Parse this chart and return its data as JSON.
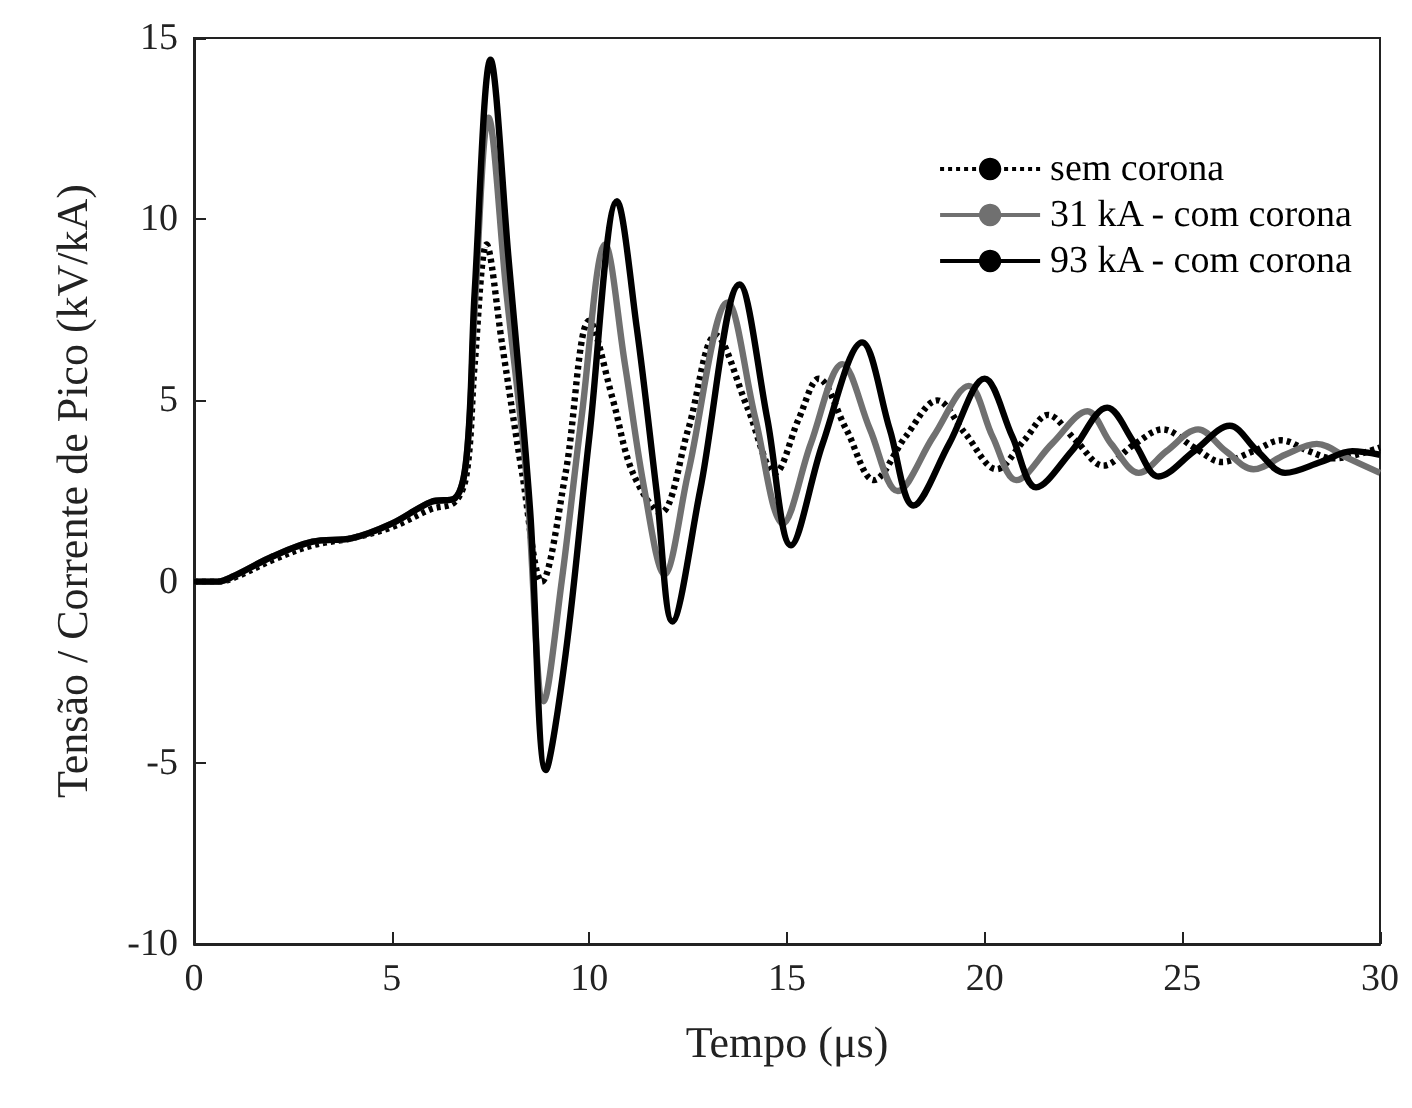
{
  "chart_data": {
    "type": "line",
    "xlabel": "Tempo (μs)",
    "ylabel": "Tensão / Corrente de Pico (kV/kA)",
    "xlim": [
      0,
      30
    ],
    "xticks": [
      0,
      5,
      10,
      15,
      20,
      25,
      30
    ],
    "ylim": [
      -10,
      15
    ],
    "yticks": [
      -10,
      -5,
      0,
      5,
      10,
      15
    ],
    "grid": false,
    "legend": "top right",
    "marker": "none",
    "series": [
      {
        "name": "sem corona",
        "color": "#000000",
        "line_style": "dotted",
        "x": [
          0,
          0.6,
          1,
          2,
          3,
          4,
          5,
          6,
          6.6,
          6.9,
          7.1,
          7.4,
          7.8,
          8.3,
          8.8,
          9.4,
          10.0,
          10.6,
          11.1,
          11.8,
          12.5,
          13.2,
          14,
          14.7,
          15.3,
          15.8,
          16.5,
          17.2,
          18,
          18.8,
          19.5,
          20.3,
          21,
          21.6,
          22.3,
          23,
          23.8,
          24.5,
          25.3,
          26,
          26.8,
          27.5,
          28.2,
          28.8,
          29.4,
          30
        ],
        "values": [
          0,
          0,
          0.1,
          0.6,
          1.0,
          1.2,
          1.5,
          2.0,
          2.2,
          3.0,
          6.0,
          9.3,
          6.5,
          3.0,
          0,
          3.0,
          7.2,
          5.0,
          3.0,
          1.9,
          4.2,
          6.8,
          4.8,
          3.0,
          4.5,
          5.6,
          4.2,
          2.8,
          4.0,
          5.0,
          4.1,
          3.1,
          3.9,
          4.6,
          3.9,
          3.2,
          3.8,
          4.2,
          3.7,
          3.3,
          3.6,
          3.9,
          3.6,
          3.4,
          3.5,
          3.7
        ]
      },
      {
        "name": "31 kA - com corona",
        "color": "#707070",
        "line_style": "solid",
        "x": [
          0,
          0.6,
          1,
          2,
          3,
          4,
          5,
          6,
          6.6,
          6.9,
          7.1,
          7.45,
          7.9,
          8.4,
          8.85,
          9.3,
          9.8,
          10.4,
          10.9,
          11.4,
          11.9,
          12.5,
          13.5,
          14.2,
          14.9,
          15.6,
          16.4,
          17.1,
          17.8,
          18.7,
          19.6,
          20.2,
          20.8,
          21.7,
          22.6,
          23.2,
          23.9,
          24.6,
          25.4,
          26.1,
          26.8,
          27.6,
          28.4,
          29.2,
          30
        ],
        "values": [
          0,
          0,
          0.15,
          0.7,
          1.1,
          1.2,
          1.6,
          2.2,
          2.3,
          3.5,
          7.5,
          12.8,
          8.0,
          3.0,
          -3.3,
          0,
          4.5,
          9.3,
          6.0,
          2.5,
          0.2,
          3.0,
          7.7,
          4.5,
          1.6,
          3.8,
          6.0,
          4.2,
          2.5,
          4.0,
          5.4,
          4.0,
          2.8,
          3.8,
          4.7,
          3.8,
          3.0,
          3.6,
          4.2,
          3.6,
          3.1,
          3.5,
          3.8,
          3.4,
          3.0
        ]
      },
      {
        "name": "93 kA - com corona",
        "color": "#000000",
        "line_style": "solid",
        "x": [
          0,
          0.6,
          1,
          2,
          3,
          4,
          5,
          6,
          6.6,
          6.9,
          7.1,
          7.5,
          7.95,
          8.5,
          8.9,
          9.4,
          10.0,
          10.7,
          11.2,
          11.7,
          12.1,
          12.8,
          13.8,
          14.5,
          15.1,
          15.9,
          16.9,
          17.6,
          18.2,
          19.1,
          20.0,
          20.7,
          21.3,
          22.2,
          23.1,
          23.8,
          24.4,
          25.3,
          26.2,
          26.9,
          27.6,
          28.5,
          29.3,
          30
        ],
        "values": [
          0,
          0,
          0.15,
          0.7,
          1.1,
          1.2,
          1.6,
          2.2,
          2.3,
          3.5,
          8.0,
          14.4,
          9.0,
          2.0,
          -5.2,
          -2.0,
          4.0,
          10.5,
          7.0,
          2.5,
          -1.1,
          2.5,
          8.2,
          4.5,
          1.0,
          3.8,
          6.6,
          4.2,
          2.1,
          3.8,
          5.6,
          4.0,
          2.6,
          3.6,
          4.8,
          3.8,
          2.9,
          3.6,
          4.3,
          3.6,
          3.0,
          3.3,
          3.6,
          3.5
        ]
      }
    ]
  }
}
